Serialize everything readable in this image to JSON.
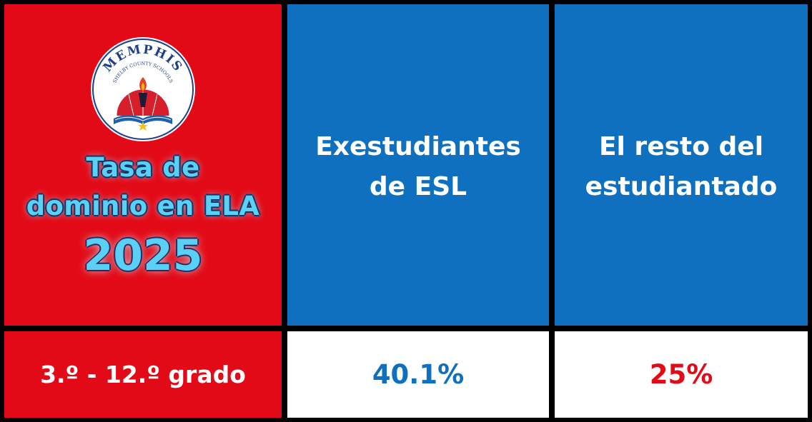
{
  "logo": {
    "top_text": "MEMPHIS",
    "sub_text": "SHELBY COUNTY SCHOOLS",
    "icon": "torch-book-logo-icon"
  },
  "title": {
    "line1": "Tasa de",
    "line2": "dominio en ELA",
    "year": "2025"
  },
  "columns": {
    "esl": {
      "line1": "Exestudiantes",
      "line2": "de ESL"
    },
    "rest": {
      "line1": "El resto del",
      "line2": "estudiantado"
    }
  },
  "row": {
    "grade_label": "3.º - 12.º grado",
    "esl_value": "40.1%",
    "rest_value": "25%"
  },
  "colors": {
    "red": "#e30a17",
    "blue": "#0f70bf",
    "title_cyan": "#5ad0f5",
    "border": "#000000"
  }
}
